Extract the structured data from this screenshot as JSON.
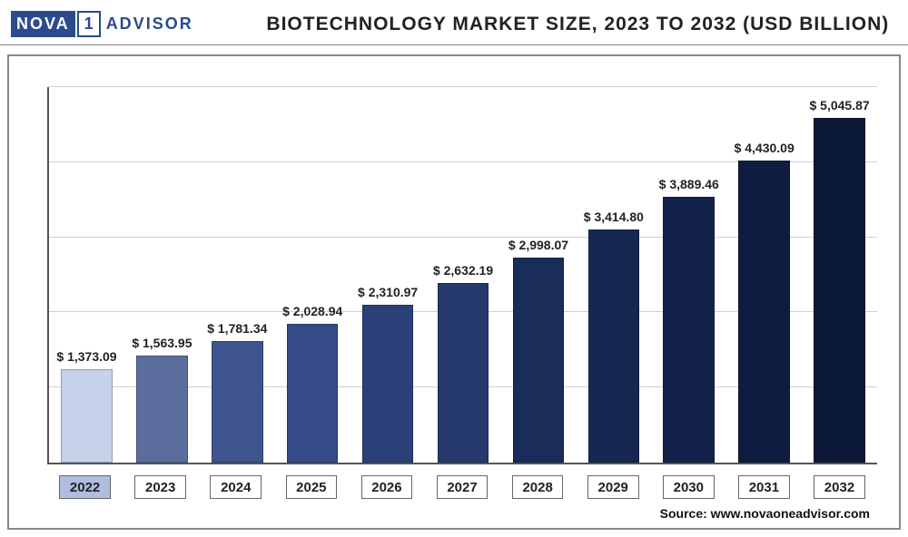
{
  "logo": {
    "nova": "NOVA",
    "one": "1",
    "advisor": "ADVISOR"
  },
  "title": "BIOTECHNOLOGY MARKET SIZE, 2023 TO 2032 (USD BILLION)",
  "source": "Source: www.novaoneadvisor.com",
  "chart": {
    "type": "bar",
    "ylim": [
      0,
      5500
    ],
    "gridlines": [
      0,
      1100,
      2200,
      3300,
      4400,
      5500
    ],
    "background_color": "#ffffff",
    "grid_color": "#d0d0d0",
    "axis_color": "#555555",
    "label_fontsize": 14,
    "xlabel_fontsize": 15,
    "bar_width_pct": 6.2,
    "slot_width_pct": 9.0909,
    "bar_left_offset_pct": 1.45,
    "xlabel_highlight_color": "#aebde0",
    "bars": [
      {
        "year": "2022",
        "value": 1373.09,
        "label": "$ 1,373.09",
        "color": "#c6d2ea",
        "highlight": true
      },
      {
        "year": "2023",
        "value": 1563.95,
        "label": "$ 1,563.95",
        "color": "#5a6d9c",
        "highlight": false
      },
      {
        "year": "2024",
        "value": 1781.34,
        "label": "$ 1,781.34",
        "color": "#3f5590",
        "highlight": false
      },
      {
        "year": "2025",
        "value": 2028.94,
        "label": "$ 2,028.94",
        "color": "#354b87",
        "highlight": false
      },
      {
        "year": "2026",
        "value": 2310.97,
        "label": "$ 2,310.97",
        "color": "#2b3f78",
        "highlight": false
      },
      {
        "year": "2027",
        "value": 2632.19,
        "label": "$ 2,632.19",
        "color": "#25396d",
        "highlight": false
      },
      {
        "year": "2028",
        "value": 2998.07,
        "label": "$ 2,998.07",
        "color": "#1a2c5a",
        "highlight": false
      },
      {
        "year": "2029",
        "value": 3414.8,
        "label": "$ 3,414.80",
        "color": "#162752",
        "highlight": false
      },
      {
        "year": "2030",
        "value": 3889.46,
        "label": "$ 3,889.46",
        "color": "#12224a",
        "highlight": false
      },
      {
        "year": "2031",
        "value": 4430.09,
        "label": "$ 4,430.09",
        "color": "#0e1c40",
        "highlight": false
      },
      {
        "year": "2032",
        "value": 5045.87,
        "label": "$ 5,045.87",
        "color": "#0b1838",
        "highlight": false
      }
    ]
  }
}
